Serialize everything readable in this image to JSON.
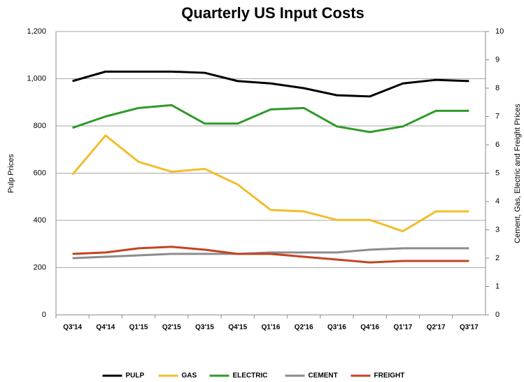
{
  "chart_data": {
    "type": "line",
    "title": "Quarterly US Input Costs",
    "y_label": "Pulp Prices",
    "y2_label": "Cement,  Gas, Electric and Freight Prices",
    "categories": [
      "Q3'14",
      "Q4'14",
      "Q1'15",
      "Q2'15",
      "Q3'15",
      "Q4'15",
      "Q1'16",
      "Q2'16",
      "Q3'16",
      "Q4'16",
      "Q1'17",
      "Q2'17",
      "Q3'17"
    ],
    "series": [
      {
        "name": "PULP",
        "color": "#000000",
        "axis": "y",
        "values": [
          990,
          1030,
          1030,
          1030,
          1025,
          990,
          980,
          960,
          930,
          925,
          980,
          995,
          990
        ]
      },
      {
        "name": "GAS",
        "color": "#f2bd2c",
        "axis": "y2",
        "values": [
          4.95,
          6.33,
          5.4,
          5.05,
          5.15,
          4.6,
          3.7,
          3.65,
          3.35,
          3.35,
          2.95,
          3.65,
          3.65
        ]
      },
      {
        "name": "ELECTRIC",
        "color": "#2f9a2a",
        "axis": "y2",
        "values": [
          6.6,
          7.0,
          7.3,
          7.4,
          6.75,
          6.75,
          7.25,
          7.3,
          6.65,
          6.45,
          6.65,
          7.2,
          7.2
        ]
      },
      {
        "name": "CEMENT",
        "color": "#8c8c8c",
        "axis": "y2",
        "values": [
          2.0,
          2.05,
          2.1,
          2.15,
          2.15,
          2.15,
          2.2,
          2.2,
          2.2,
          2.3,
          2.35,
          2.35,
          2.35
        ]
      },
      {
        "name": "FREIGHT",
        "color": "#c4441f",
        "axis": "y2",
        "values": [
          2.15,
          2.2,
          2.35,
          2.4,
          2.3,
          2.15,
          2.15,
          2.05,
          1.95,
          1.85,
          1.9,
          1.9,
          1.9
        ]
      }
    ],
    "ylim": [
      0,
      1200
    ],
    "yticks": [
      0,
      200,
      400,
      600,
      800,
      {
        "value": 1000,
        "label": "1,000"
      },
      {
        "value": 1200,
        "label": "1,200"
      }
    ],
    "y2lim": [
      0,
      10
    ],
    "y2ticks": [
      0,
      1,
      2,
      3,
      4,
      5,
      6,
      7,
      8,
      9,
      10
    ],
    "grid": true,
    "legend": "bottom"
  }
}
